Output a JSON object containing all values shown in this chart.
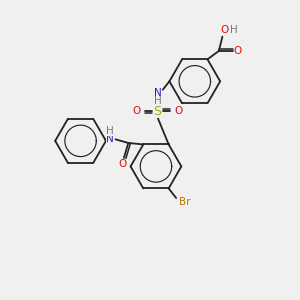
{
  "bg_color": "#f0f0f0",
  "bond_color": "#222222",
  "colors": {
    "N": "#2020cc",
    "H": "#777777",
    "O": "#dd1100",
    "S": "#aaaa00",
    "Br": "#bb7700",
    "C": "#222222"
  },
  "lw": 1.3,
  "fs": 7.5
}
